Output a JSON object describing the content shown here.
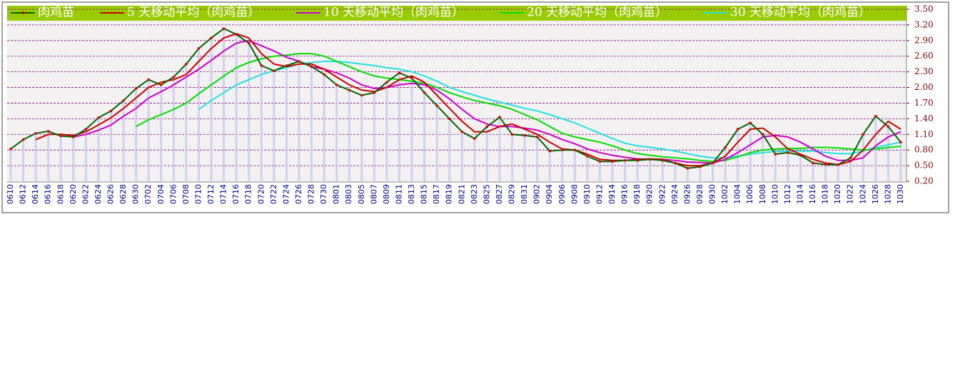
{
  "chart_data": {
    "type": "line",
    "categories": [
      "0610",
      "0612",
      "0614",
      "0616",
      "0618",
      "0620",
      "0622",
      "0624",
      "0626",
      "0628",
      "0630",
      "0702",
      "0704",
      "0706",
      "0708",
      "0710",
      "0712",
      "0714",
      "0716",
      "0718",
      "0720",
      "0722",
      "0724",
      "0726",
      "0728",
      "0730",
      "0801",
      "0803",
      "0805",
      "0807",
      "0809",
      "0811",
      "0813",
      "0815",
      "0817",
      "0819",
      "0821",
      "0823",
      "0825",
      "0827",
      "0829",
      "0831",
      "0902",
      "0904",
      "0906",
      "0908",
      "0910",
      "0912",
      "0914",
      "0916",
      "0918",
      "0920",
      "0922",
      "0924",
      "0926",
      "0928",
      "0930",
      "1002",
      "1004",
      "1006",
      "1008",
      "1010",
      "1012",
      "1014",
      "1016",
      "1018",
      "1020",
      "1022",
      "1024",
      "1026",
      "1028",
      "1030"
    ],
    "series": [
      {
        "name": "肉鸡苗",
        "color": "#006600",
        "values": [
          0.82,
          1.0,
          1.12,
          1.16,
          1.07,
          1.05,
          1.2,
          1.42,
          1.55,
          1.75,
          1.98,
          2.15,
          2.05,
          2.2,
          2.45,
          2.75,
          2.95,
          3.13,
          3.02,
          2.85,
          2.42,
          2.32,
          2.42,
          2.5,
          2.4,
          2.25,
          2.05,
          1.95,
          1.85,
          1.9,
          2.1,
          2.28,
          2.18,
          1.9,
          1.65,
          1.4,
          1.15,
          1.02,
          1.25,
          1.43,
          1.1,
          1.08,
          1.05,
          0.78,
          0.8,
          0.8,
          0.68,
          0.58,
          0.58,
          0.6,
          0.6,
          0.62,
          0.6,
          0.55,
          0.45,
          0.48,
          0.55,
          0.85,
          1.2,
          1.32,
          1.1,
          0.72,
          0.75,
          0.7,
          0.55,
          0.52,
          0.52,
          0.65,
          1.1,
          1.45,
          1.25,
          0.95
        ]
      },
      {
        "name": "5 天移动平均（肉鸡苗）",
        "color": "#cc0000",
        "values": [
          null,
          null,
          1.0,
          1.1,
          1.1,
          1.08,
          1.15,
          1.28,
          1.42,
          1.6,
          1.8,
          2.0,
          2.1,
          2.15,
          2.25,
          2.5,
          2.75,
          2.95,
          3.03,
          2.95,
          2.65,
          2.45,
          2.4,
          2.45,
          2.45,
          2.35,
          2.2,
          2.05,
          1.95,
          1.92,
          2.0,
          2.15,
          2.22,
          2.1,
          1.85,
          1.6,
          1.35,
          1.15,
          1.15,
          1.25,
          1.3,
          1.2,
          1.1,
          0.95,
          0.82,
          0.8,
          0.72,
          0.62,
          0.6,
          0.6,
          0.62,
          0.63,
          0.62,
          0.55,
          0.5,
          0.5,
          0.55,
          0.68,
          0.95,
          1.2,
          1.22,
          1.05,
          0.82,
          0.72,
          0.62,
          0.55,
          0.52,
          0.58,
          0.8,
          1.1,
          1.35,
          1.2
        ]
      },
      {
        "name": "10 天移动平均（肉鸡苗）",
        "color": "#cc00cc",
        "values": [
          null,
          null,
          null,
          null,
          null,
          1.05,
          1.1,
          1.18,
          1.28,
          1.45,
          1.6,
          1.8,
          1.92,
          2.05,
          2.2,
          2.35,
          2.52,
          2.7,
          2.85,
          2.9,
          2.8,
          2.7,
          2.58,
          2.5,
          2.4,
          2.35,
          2.28,
          2.18,
          2.05,
          1.98,
          2.0,
          2.05,
          2.08,
          2.05,
          1.95,
          1.78,
          1.58,
          1.4,
          1.3,
          1.25,
          1.25,
          1.22,
          1.18,
          1.1,
          1.0,
          0.92,
          0.82,
          0.75,
          0.7,
          0.66,
          0.63,
          0.62,
          0.62,
          0.6,
          0.57,
          0.56,
          0.55,
          0.62,
          0.75,
          0.9,
          1.05,
          1.08,
          1.05,
          0.95,
          0.82,
          0.68,
          0.6,
          0.6,
          0.65,
          0.88,
          1.05,
          1.15
        ]
      },
      {
        "name": "20 天移动平均（肉鸡苗）",
        "color": "#00dd00",
        "values": [
          null,
          null,
          null,
          null,
          null,
          null,
          null,
          null,
          null,
          null,
          1.25,
          1.38,
          1.48,
          1.58,
          1.7,
          1.88,
          2.05,
          2.22,
          2.38,
          2.48,
          2.55,
          2.6,
          2.62,
          2.65,
          2.65,
          2.6,
          2.5,
          2.4,
          2.3,
          2.22,
          2.18,
          2.15,
          2.12,
          2.08,
          2.0,
          1.9,
          1.82,
          1.75,
          1.7,
          1.65,
          1.58,
          1.48,
          1.38,
          1.25,
          1.12,
          1.05,
          1.0,
          0.95,
          0.88,
          0.8,
          0.73,
          0.7,
          0.67,
          0.65,
          0.63,
          0.6,
          0.58,
          0.6,
          0.67,
          0.75,
          0.8,
          0.82,
          0.83,
          0.83,
          0.85,
          0.85,
          0.84,
          0.82,
          0.8,
          0.82,
          0.85,
          0.87
        ]
      },
      {
        "name": "30 天移动平均（肉鸡苗）",
        "color": "#22e0e0",
        "values": [
          null,
          null,
          null,
          null,
          null,
          null,
          null,
          null,
          null,
          null,
          null,
          null,
          null,
          null,
          null,
          1.58,
          1.75,
          1.9,
          2.05,
          2.15,
          2.25,
          2.32,
          2.38,
          2.45,
          2.48,
          2.5,
          2.5,
          2.48,
          2.45,
          2.42,
          2.38,
          2.35,
          2.3,
          2.22,
          2.12,
          2.0,
          1.92,
          1.85,
          1.78,
          1.72,
          1.66,
          1.6,
          1.55,
          1.48,
          1.4,
          1.32,
          1.22,
          1.12,
          1.02,
          0.93,
          0.88,
          0.85,
          0.82,
          0.78,
          0.73,
          0.68,
          0.65,
          0.65,
          0.68,
          0.72,
          0.75,
          0.77,
          0.78,
          0.78,
          0.78,
          0.75,
          0.73,
          0.73,
          0.78,
          0.85,
          0.9,
          0.95
        ]
      }
    ],
    "ylim": [
      0.2,
      3.5
    ],
    "yticks": [
      {
        "value": 0.2,
        "label": "0.20"
      },
      {
        "value": 0.5,
        "label": "0.50"
      },
      {
        "value": 0.8,
        "label": "0.80"
      },
      {
        "value": 1.1,
        "label": "1.10"
      },
      {
        "value": 1.4,
        "label": "1.40"
      },
      {
        "value": 1.7,
        "label": "1.70"
      },
      {
        "value": 2.0,
        "label": "2.00"
      },
      {
        "value": 2.3,
        "label": "2.30"
      },
      {
        "value": 2.6,
        "label": "2.60"
      },
      {
        "value": 2.9,
        "label": "2.90"
      },
      {
        "value": 3.2,
        "label": "3.20"
      },
      {
        "value": 3.5,
        "label": "3.50"
      }
    ],
    "grid": true
  }
}
